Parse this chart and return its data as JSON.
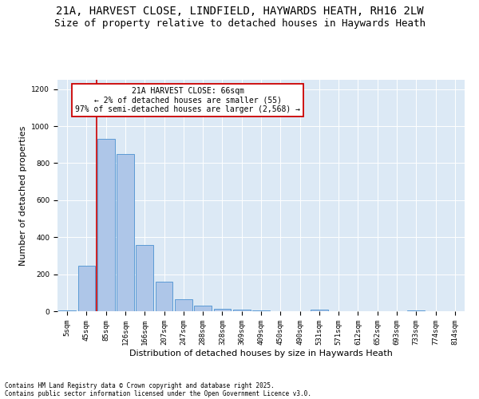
{
  "title1": "21A, HARVEST CLOSE, LINDFIELD, HAYWARDS HEATH, RH16 2LW",
  "title2": "Size of property relative to detached houses in Haywards Heath",
  "xlabel": "Distribution of detached houses by size in Haywards Heath",
  "ylabel": "Number of detached properties",
  "categories": [
    "5sqm",
    "45sqm",
    "85sqm",
    "126sqm",
    "166sqm",
    "207sqm",
    "247sqm",
    "288sqm",
    "328sqm",
    "369sqm",
    "409sqm",
    "450sqm",
    "490sqm",
    "531sqm",
    "571sqm",
    "612sqm",
    "652sqm",
    "693sqm",
    "733sqm",
    "774sqm",
    "814sqm"
  ],
  "values": [
    5,
    247,
    930,
    848,
    358,
    158,
    65,
    30,
    15,
    10,
    5,
    0,
    0,
    8,
    0,
    0,
    0,
    0,
    5,
    0,
    0
  ],
  "bar_color": "#aec6e8",
  "bar_edge_color": "#5b9bd5",
  "vline_x": 1.5,
  "vline_color": "#cc0000",
  "annotation_text": "21A HARVEST CLOSE: 66sqm\n← 2% of detached houses are smaller (55)\n97% of semi-detached houses are larger (2,568) →",
  "annotation_box_color": "#ffffff",
  "annotation_box_edge": "#cc0000",
  "bg_color": "#dce9f5",
  "ylim": [
    0,
    1250
  ],
  "yticks": [
    0,
    200,
    400,
    600,
    800,
    1000,
    1200
  ],
  "footer1": "Contains HM Land Registry data © Crown copyright and database right 2025.",
  "footer2": "Contains public sector information licensed under the Open Government Licence v3.0.",
  "title_fontsize": 10,
  "subtitle_fontsize": 9,
  "tick_fontsize": 6.5,
  "ylabel_fontsize": 8,
  "xlabel_fontsize": 8,
  "annotation_fontsize": 7,
  "footer_fontsize": 5.5
}
